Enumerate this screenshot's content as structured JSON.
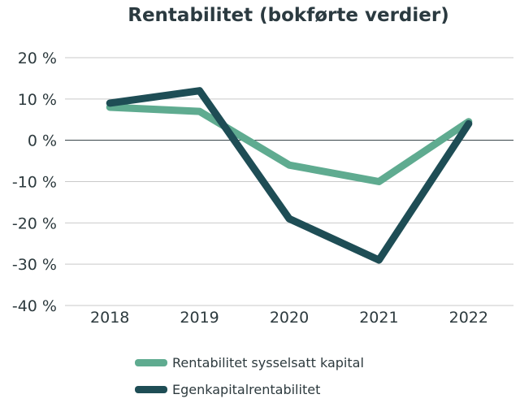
{
  "chart_data": {
    "type": "line",
    "title": "Rentabilitet (bokførte verdier)",
    "categories": [
      "2018",
      "2019",
      "2020",
      "2021",
      "2022"
    ],
    "series": [
      {
        "name": "Rentabilitet sysselsatt kapital",
        "values": [
          8,
          7,
          -6,
          -10,
          4.5
        ],
        "color": "#5fab90"
      },
      {
        "name": "Egenkapitalrentabilitet",
        "values": [
          9,
          12,
          -19,
          -29,
          4
        ],
        "color": "#1e4d55"
      }
    ],
    "ylim": [
      -40,
      20
    ],
    "yticks": [
      20,
      10,
      0,
      -10,
      -20,
      -30,
      -40
    ],
    "ytick_labels": [
      "20 %",
      "10 %",
      "0 %",
      "-10 %",
      "-20 %",
      "-30 %",
      "-40 %"
    ],
    "xlabel": "",
    "ylabel": "",
    "grid": true,
    "legend": "bottom"
  }
}
